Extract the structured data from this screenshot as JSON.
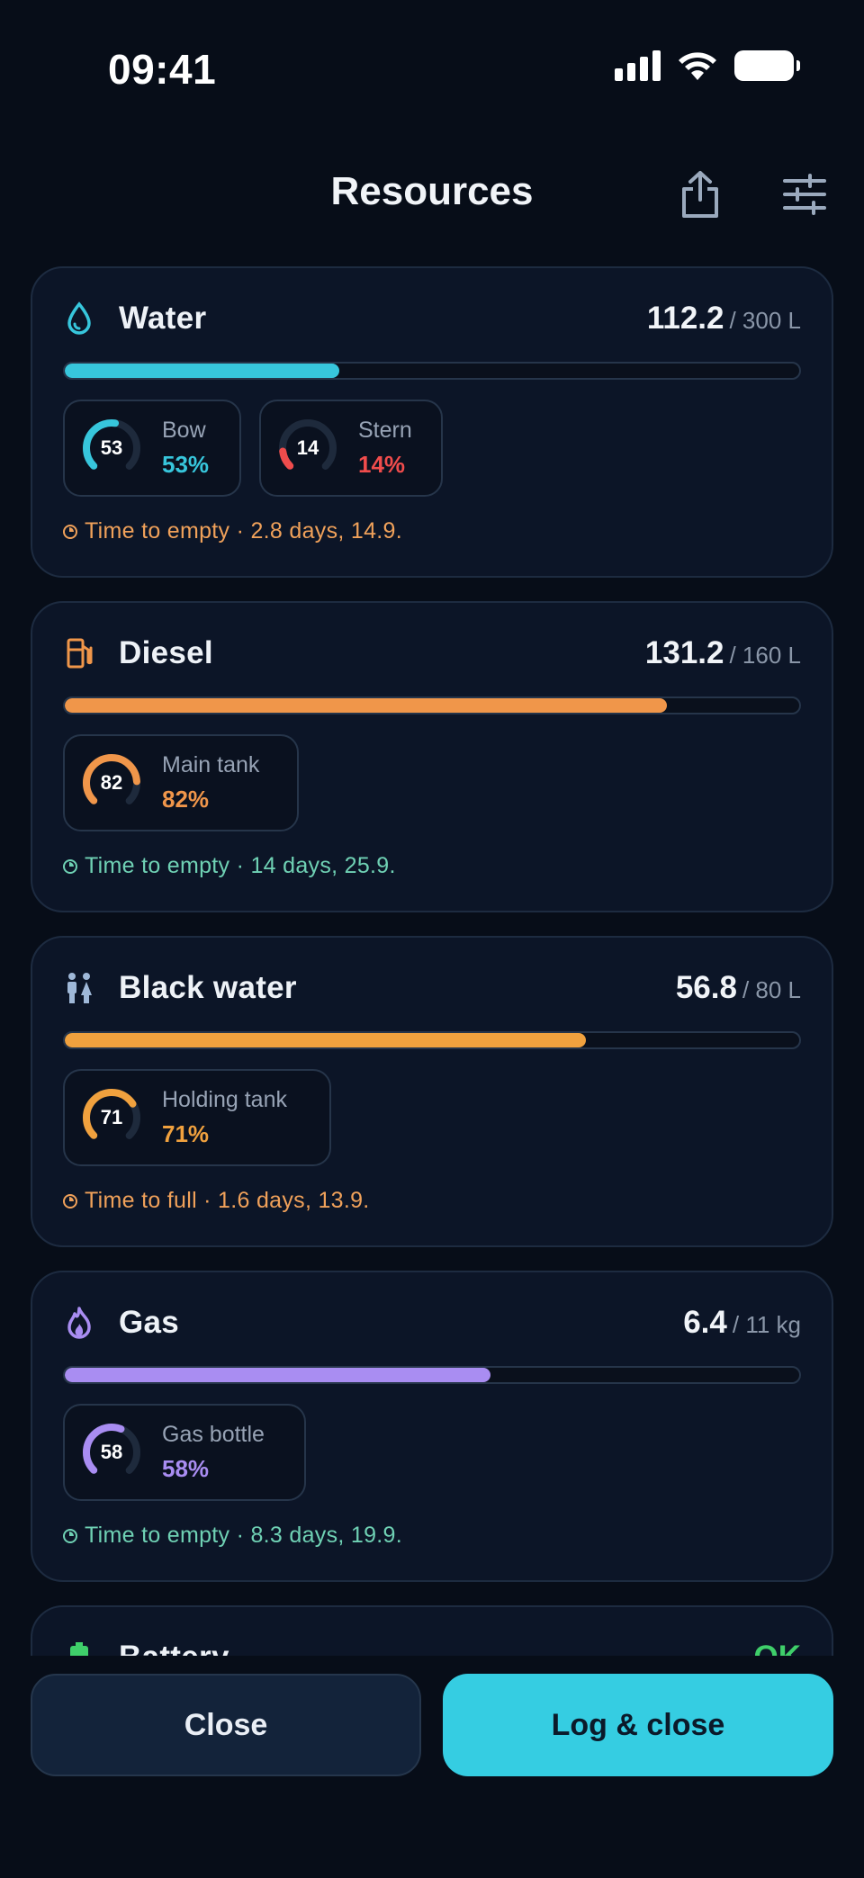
{
  "status_bar": {
    "time": "09:41"
  },
  "header": {
    "title": "Resources"
  },
  "resources": [
    {
      "title": "Water",
      "icon": "water-drop-icon",
      "value": "112.2",
      "capacity": "/ 300 L",
      "fill_fraction": 0.374,
      "color": "#37c6dc",
      "tanks": [
        {
          "name": "Bow",
          "level": "53",
          "pct": "53%",
          "color": "#37c6dc",
          "fraction": 0.53
        },
        {
          "name": "Stern",
          "level": "14",
          "pct": "14%",
          "color": "#f04c4c",
          "fraction": 0.14
        }
      ],
      "eta": "Time to empty · 2.8 days, 14.9.",
      "eta_color": "#f0a15a"
    },
    {
      "title": "Diesel",
      "icon": "fuel-pump-icon",
      "value": "131.2",
      "capacity": "/ 160 L",
      "fill_fraction": 0.82,
      "color": "#f0964a",
      "tanks": [
        {
          "name": "Main tank",
          "level": "82",
          "pct": "82%",
          "color": "#f0964a",
          "fraction": 0.82
        }
      ],
      "eta": "Time to empty · 14 days, 25.9.",
      "eta_color": "#6fd1b4"
    },
    {
      "title": "Black water",
      "icon": "toilet-people-icon",
      "value": "56.8",
      "capacity": "/ 80 L",
      "fill_fraction": 0.71,
      "color": "#f0a13e",
      "tanks": [
        {
          "name": "Holding tank",
          "level": "71",
          "pct": "71%",
          "color": "#f0a13e",
          "fraction": 0.71
        }
      ],
      "eta": "Time to full · 1.6 days, 13.9.",
      "eta_color": "#f0a15a"
    },
    {
      "title": "Gas",
      "icon": "flame-icon",
      "value": "6.4",
      "capacity": "/ 11 kg",
      "fill_fraction": 0.58,
      "color": "#a98df2",
      "tanks": [
        {
          "name": "Gas bottle",
          "level": "58",
          "pct": "58%",
          "color": "#a98df2",
          "fraction": 0.58
        }
      ],
      "eta": "Time to empty · 8.3 days, 19.9.",
      "eta_color": "#6fd1b4"
    },
    {
      "title": "Battery",
      "icon": "battery-icon",
      "value": "OK",
      "capacity": "",
      "fill_fraction": 0,
      "color": "#3fcf6a",
      "tanks": [],
      "eta": "",
      "eta_color": "#6fd1b4"
    }
  ],
  "buttons": {
    "close": "Close",
    "log_close": "Log & close"
  }
}
